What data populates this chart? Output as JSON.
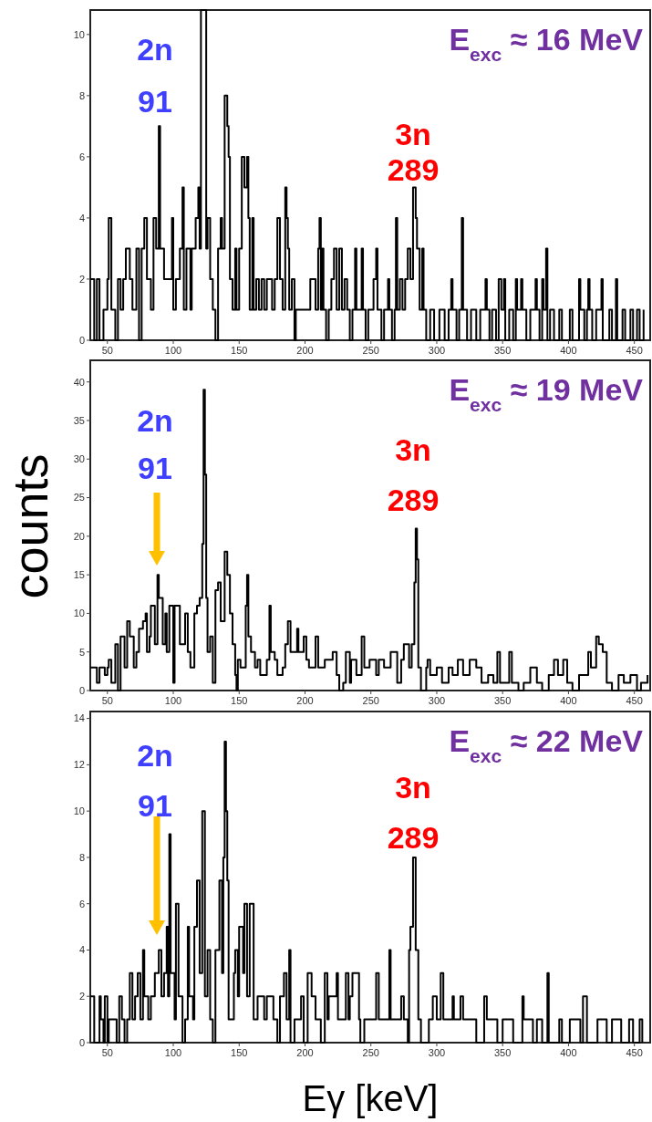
{
  "chart_data": [
    {
      "type": "step",
      "title": "E$_{exc}$ ≈ 16 MeV",
      "color": "#000000",
      "xlim": [
        37,
        462
      ],
      "ylim": [
        0,
        10.8
      ],
      "xticks": [
        50,
        100,
        150,
        200,
        250,
        300,
        350,
        400,
        450
      ],
      "yticks": [
        0,
        2,
        4,
        6,
        8,
        10
      ],
      "annotations": [
        "2n",
        "91",
        "3n",
        "289"
      ],
      "x": [
        37,
        40,
        42,
        44,
        47,
        50,
        51,
        53,
        56,
        58,
        60,
        62,
        64,
        67,
        69,
        72,
        74,
        76,
        78,
        80,
        83,
        85,
        87,
        89,
        90,
        93,
        96,
        99,
        100,
        102,
        105,
        107,
        108,
        110,
        113,
        114,
        117,
        119,
        120,
        121,
        125,
        126,
        128,
        130,
        132,
        134,
        136,
        137,
        139,
        141,
        142,
        143,
        145,
        147,
        148,
        150,
        152,
        154,
        156,
        157,
        158,
        160,
        161,
        163,
        165,
        167,
        169,
        171,
        175,
        177,
        179,
        181,
        183,
        185,
        186,
        187,
        188,
        190,
        192,
        193,
        200,
        204,
        208,
        210,
        211,
        212,
        213,
        214,
        216,
        218,
        220,
        222,
        224,
        226,
        228,
        230,
        232,
        234,
        236,
        238,
        239,
        243,
        244,
        246,
        248,
        252,
        254,
        255,
        258,
        260,
        263,
        264,
        266,
        268,
        269,
        270,
        272,
        274,
        276,
        278,
        280,
        282,
        284,
        285,
        287,
        289,
        290,
        292,
        295,
        298,
        302,
        306,
        309,
        311,
        312,
        315,
        317,
        319,
        320,
        323,
        326,
        330,
        333,
        337,
        338,
        340,
        342,
        345,
        347,
        349,
        351,
        352,
        355,
        358,
        360,
        361,
        364,
        365,
        368,
        371,
        375,
        376,
        378,
        380,
        381,
        383,
        384,
        386,
        389,
        393,
        395,
        401,
        403,
        408,
        409,
        412,
        414,
        415,
        416,
        418,
        421,
        425,
        426,
        431,
        433,
        436,
        437,
        441,
        443,
        447,
        449,
        452,
        454,
        457
      ],
      "values": [
        2,
        0,
        2,
        0,
        1,
        2,
        4,
        1,
        0,
        2,
        1,
        2,
        3,
        2,
        1,
        3,
        0,
        3,
        4,
        2,
        1,
        4,
        3,
        7,
        3,
        2,
        2,
        4,
        1,
        2,
        3,
        5,
        1,
        3,
        1,
        3,
        4,
        5,
        3,
        10.8,
        3,
        4,
        2,
        1,
        0,
        3,
        4,
        3,
        8,
        7,
        6,
        2,
        1,
        3,
        1,
        3,
        6,
        5,
        6,
        4,
        1,
        4,
        1,
        2,
        1,
        2,
        1,
        2,
        1,
        2,
        4,
        2,
        1,
        5,
        4,
        3,
        1,
        2,
        0,
        1,
        1,
        2,
        1,
        3,
        4,
        1,
        3,
        1,
        0,
        1,
        2,
        3,
        1,
        3,
        1,
        2,
        1,
        0,
        1,
        3,
        1,
        3,
        1,
        0,
        1,
        2,
        3,
        1,
        0,
        1,
        2,
        1,
        0,
        1,
        4,
        1,
        2,
        1,
        2,
        3,
        2,
        5,
        4,
        3,
        1,
        3,
        1,
        0,
        1,
        0,
        1,
        0,
        1,
        2,
        1,
        0,
        1,
        4,
        1,
        0,
        1,
        0,
        1,
        2,
        1,
        0,
        1,
        0,
        2,
        1,
        2,
        0,
        1,
        0,
        2,
        1,
        2,
        1,
        0,
        1,
        2,
        1,
        0,
        2,
        1,
        3,
        0,
        1,
        0,
        1,
        0,
        1,
        0,
        2,
        1,
        0,
        1,
        2,
        1,
        0,
        1,
        2,
        0,
        1,
        0,
        2,
        0,
        1,
        0,
        1,
        0,
        1,
        0,
        1
      ]
    },
    {
      "type": "step",
      "title": "E$_{exc}$ ≈ 19 MeV",
      "ylabel": "counts",
      "color": "#000000",
      "xlim": [
        37,
        462
      ],
      "ylim": [
        0,
        42.8
      ],
      "xticks": [
        50,
        100,
        150,
        200,
        250,
        300,
        350,
        400,
        450
      ],
      "yticks": [
        0,
        5,
        10,
        15,
        20,
        25,
        30,
        35,
        40
      ],
      "annotations": [
        "2n",
        "91",
        "3n",
        "289"
      ],
      "x": [
        37,
        42,
        44,
        48,
        50,
        51,
        53,
        56,
        58,
        60,
        63,
        65,
        67,
        70,
        72,
        74,
        77,
        79,
        80,
        82,
        83,
        86,
        88,
        89,
        92,
        94,
        95,
        97,
        100,
        101,
        103,
        105,
        109,
        111,
        113,
        116,
        118,
        120,
        122,
        123,
        124,
        125,
        126,
        128,
        130,
        132,
        134,
        136,
        139,
        141,
        143,
        145,
        147,
        148,
        149,
        151,
        155,
        156,
        157,
        159,
        162,
        164,
        166,
        171,
        173,
        174,
        177,
        179,
        183,
        185,
        187,
        189,
        194,
        195,
        199,
        201,
        203,
        208,
        210,
        215,
        221,
        224,
        226,
        229,
        231,
        234,
        235,
        239,
        243,
        245,
        249,
        254,
        256,
        260,
        265,
        270,
        273,
        275,
        279,
        281,
        283,
        284,
        285,
        286,
        288,
        292,
        293,
        295,
        300,
        304,
        309,
        312,
        316,
        320,
        325,
        330,
        334,
        339,
        343,
        346,
        348,
        355,
        357,
        362,
        366,
        371,
        376,
        380,
        385,
        389,
        392,
        396,
        399,
        403,
        408,
        415,
        417,
        421,
        423,
        426,
        429,
        433,
        438,
        442,
        447,
        452,
        455,
        460
      ],
      "values": [
        3,
        1,
        3,
        2,
        3,
        4,
        1,
        6,
        0,
        7,
        3,
        9,
        7,
        3,
        5,
        8,
        9,
        10,
        5,
        7,
        11,
        6,
        15,
        12,
        6,
        10,
        5,
        11,
        1,
        11,
        11,
        6,
        10,
        5,
        3,
        10,
        11,
        12,
        19,
        39,
        28,
        12,
        5,
        7,
        1,
        13,
        14,
        9,
        18,
        15,
        10,
        6,
        2,
        0,
        4,
        3,
        11,
        15,
        7,
        5,
        3,
        4,
        2,
        4,
        11,
        5,
        4,
        2,
        3,
        6,
        9,
        5,
        8,
        5,
        7,
        4,
        3,
        7,
        3,
        4,
        5,
        2,
        0,
        1,
        5,
        1,
        4,
        2,
        7,
        3,
        4,
        2,
        4,
        3,
        5,
        1,
        4,
        6,
        3,
        6,
        14,
        21,
        17,
        3,
        0,
        3,
        4,
        2,
        3,
        1,
        3,
        2,
        4,
        2,
        4,
        3,
        1,
        2,
        1,
        5,
        1,
        5,
        1,
        0,
        1,
        3,
        1,
        0,
        2,
        4,
        2,
        4,
        1,
        0,
        2,
        5,
        3,
        7,
        6,
        5,
        1,
        0,
        2,
        1,
        2,
        0,
        1,
        2
      ]
    },
    {
      "type": "step",
      "title": "E$_{exc}$ ≈ 22 MeV",
      "xlabel": "Eγ [keV]",
      "color": "#000000",
      "xlim": [
        37,
        462
      ],
      "ylim": [
        0,
        14.3
      ],
      "xticks": [
        50,
        100,
        150,
        200,
        250,
        300,
        350,
        400,
        450
      ],
      "yticks": [
        0,
        2,
        4,
        6,
        8,
        10,
        12,
        14
      ],
      "annotations": [
        "2n",
        "91",
        "3n",
        "289"
      ],
      "x": [
        37,
        40,
        44,
        45,
        47,
        48,
        50,
        51,
        55,
        57,
        59,
        61,
        63,
        65,
        67,
        69,
        71,
        73,
        75,
        77,
        78,
        81,
        83,
        86,
        89,
        91,
        93,
        95,
        96,
        97,
        98,
        101,
        102,
        104,
        107,
        109,
        111,
        112,
        115,
        116,
        118,
        120,
        122,
        124,
        126,
        128,
        130,
        132,
        135,
        137,
        138,
        139,
        140,
        141,
        142,
        146,
        147,
        149,
        150,
        153,
        154,
        156,
        158,
        161,
        164,
        169,
        171,
        176,
        179,
        181,
        184,
        186,
        188,
        189,
        192,
        197,
        199,
        202,
        205,
        208,
        212,
        215,
        217,
        218,
        224,
        225,
        231,
        233,
        234,
        236,
        241,
        242,
        245,
        254,
        256,
        264,
        265,
        273,
        275,
        278,
        279,
        280,
        282,
        284,
        286,
        288,
        294,
        297,
        300,
        303,
        305,
        312,
        313,
        318,
        320,
        330,
        336,
        338,
        346,
        350,
        358,
        365,
        366,
        373,
        376,
        380,
        384,
        385,
        393,
        395,
        401,
        409,
        411,
        414,
        422,
        429,
        433,
        440,
        446,
        449,
        454,
        456
      ],
      "values": [
        2,
        0,
        2,
        1,
        0,
        2,
        0,
        1,
        1,
        0,
        2,
        1,
        0,
        1,
        3,
        1,
        2,
        3,
        1,
        4,
        2,
        1,
        2,
        3,
        4,
        2,
        3,
        5,
        2,
        9,
        3,
        1,
        6,
        2,
        0,
        1,
        5,
        2,
        1,
        5,
        7,
        3,
        10,
        2,
        4,
        1,
        0,
        4,
        7,
        3,
        8,
        13,
        10,
        7,
        1,
        3,
        4,
        2,
        5,
        3,
        6,
        2,
        6,
        1,
        2,
        1,
        2,
        1,
        0,
        2,
        3,
        1,
        4,
        0,
        1,
        2,
        0,
        3,
        2,
        1,
        0,
        3,
        1,
        2,
        3,
        1,
        3,
        1,
        2,
        3,
        1,
        0,
        1,
        3,
        1,
        4,
        1,
        2,
        1,
        0,
        4,
        5,
        8,
        4,
        1,
        0,
        1,
        2,
        1,
        3,
        1,
        2,
        1,
        2,
        1,
        0,
        2,
        1,
        0,
        1,
        0,
        2,
        1,
        0,
        1,
        0,
        3,
        0,
        1,
        0,
        1,
        0,
        2,
        0,
        1,
        0,
        1,
        0,
        1,
        0,
        1,
        0
      ]
    }
  ]
}
